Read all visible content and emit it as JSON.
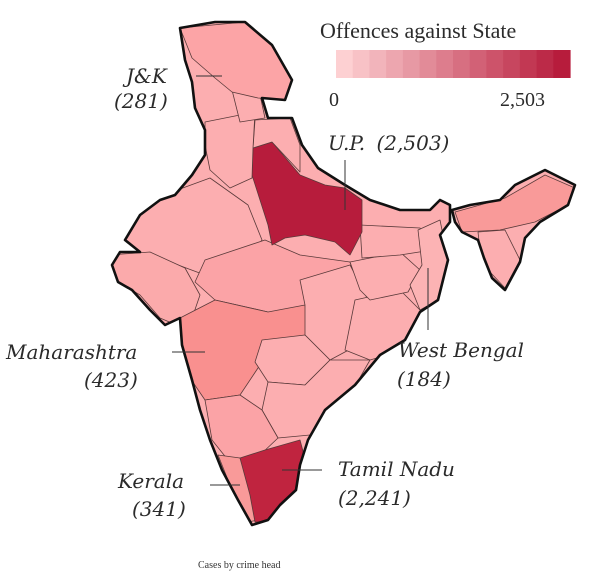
{
  "legend": {
    "title": "Offences against State",
    "min_label": "0",
    "max_label": "2,503",
    "min_value": 0,
    "max_value": 2503,
    "color_low": "#fdd0d2",
    "color_high": "#b71c3c"
  },
  "colors": {
    "default_state": "#fcaeb0",
    "outline": "#111111"
  },
  "annotations": [
    {
      "id": "jk",
      "name": "J&K",
      "value_label": "(281)",
      "value": 281,
      "inline": false
    },
    {
      "id": "up",
      "name": "U.P.",
      "value_label": "(2,503)",
      "value": 2503,
      "inline": true
    },
    {
      "id": "mh",
      "name": "Maharashtra",
      "value_label": "(423)",
      "value": 423,
      "inline": false
    },
    {
      "id": "wb",
      "name": "West Bengal",
      "value_label": "(184)",
      "value": 184,
      "inline": false
    },
    {
      "id": "kl",
      "name": "Kerala",
      "value_label": "(341)",
      "value": 341,
      "inline": false
    },
    {
      "id": "tn",
      "name": "Tamil Nadu",
      "value_label": "(2,241)",
      "value": 2241,
      "inline": false
    }
  ],
  "caption": "Cases by crime head"
}
